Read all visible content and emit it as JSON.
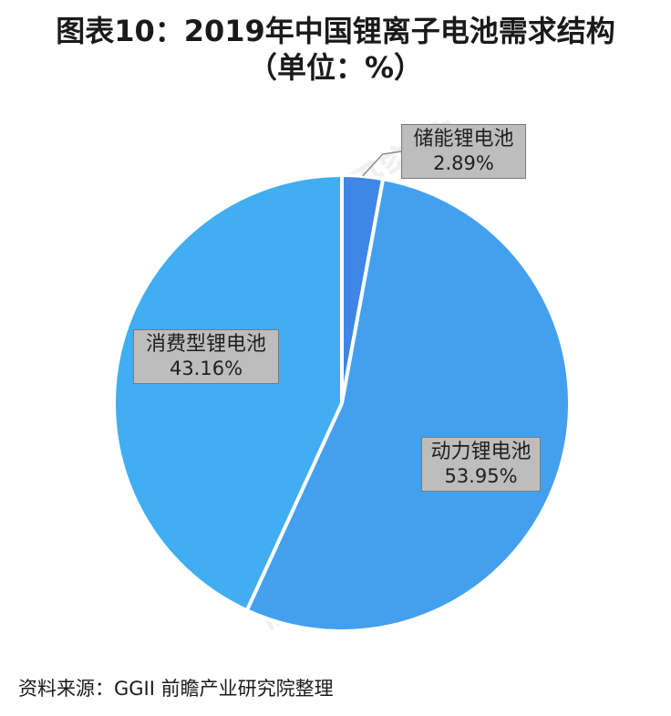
{
  "chart_data": {
    "type": "pie",
    "title_line1": "图表10：2019年中国锂离子电池需求结构",
    "title_line2": "（单位：%）",
    "slices": [
      {
        "label": "储能锂电池",
        "value": 2.89,
        "value_text": "2.89%",
        "color": "#3f86e6"
      },
      {
        "label": "动力锂电池",
        "value": 53.95,
        "value_text": "53.95%",
        "color": "#43a0ee"
      },
      {
        "label": "消费型锂电池",
        "value": 43.16,
        "value_text": "43.16%",
        "color": "#40aef0"
      }
    ],
    "legend": "none"
  },
  "source": "资料来源：GGII 前瞻产业研究院整理",
  "watermark": "前瞻产业研究院"
}
